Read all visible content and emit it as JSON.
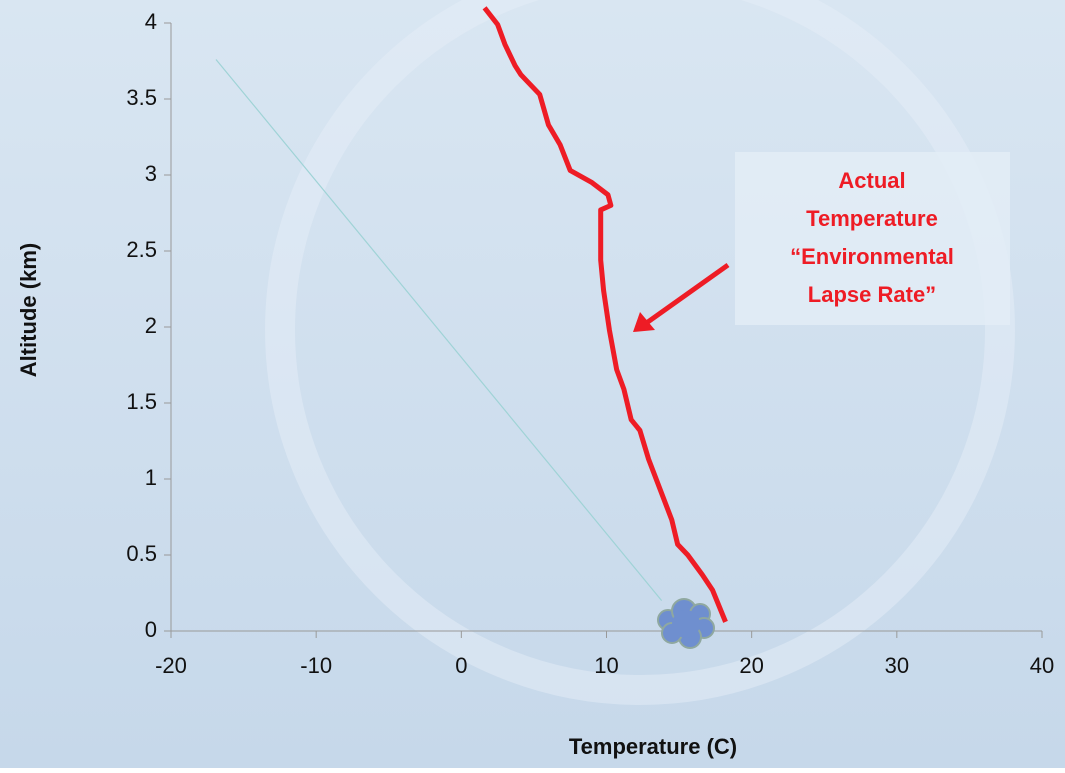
{
  "chart_data": {
    "type": "line",
    "xlabel": "Temperature (C)",
    "ylabel": "Altitude (km)",
    "xlim": [
      -20,
      40
    ],
    "xticks": [
      -20,
      -10,
      0,
      10,
      20,
      30,
      40
    ],
    "ylim": [
      0,
      4
    ],
    "yticks": [
      0,
      0.5,
      1,
      1.5,
      2,
      2.5,
      3,
      3.5,
      4
    ],
    "annotation": [
      "Actual",
      "Temperature",
      "“Environmental",
      "Lapse Rate”"
    ],
    "annotation_color": "#ee1c25",
    "series": [
      {
        "color": "#ee1c25",
        "x": [
          1.6,
          2.5,
          3.0,
          3.7,
          4.1,
          5.4,
          6.0,
          6.8,
          7.5,
          9.0,
          10.1,
          10.3,
          9.6,
          9.6,
          9.8,
          10.2,
          10.7,
          11.2,
          11.7,
          12.3,
          12.9,
          13.7,
          14.5,
          14.9,
          15.6,
          16.6,
          17.3,
          18.2
        ],
        "values": [
          4.1,
          3.99,
          3.86,
          3.72,
          3.66,
          3.53,
          3.33,
          3.2,
          3.03,
          2.95,
          2.87,
          2.8,
          2.77,
          2.44,
          2.24,
          1.98,
          1.72,
          1.59,
          1.39,
          1.32,
          1.13,
          0.93,
          0.73,
          0.57,
          0.5,
          0.37,
          0.27,
          0.06
        ]
      },
      {
        "color": "#9fd3d6",
        "x": [
          13.8,
          -16.9
        ],
        "values": [
          0.2,
          3.76
        ]
      }
    ]
  }
}
